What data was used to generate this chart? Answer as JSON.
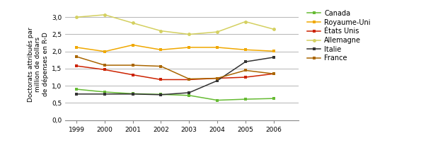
{
  "years": [
    1999,
    2000,
    2001,
    2002,
    2003,
    2004,
    2005,
    2006
  ],
  "series": {
    "Canada": [
      0.9,
      0.82,
      0.77,
      0.75,
      0.72,
      0.58,
      0.61,
      0.63
    ],
    "Royaume-Uni": [
      2.12,
      2.0,
      2.19,
      2.05,
      2.12,
      2.12,
      2.05,
      2.01
    ],
    "États Unis": [
      1.58,
      1.47,
      1.32,
      1.18,
      1.18,
      1.22,
      1.25,
      1.35
    ],
    "Allemagne": [
      3.0,
      3.07,
      2.83,
      2.6,
      2.5,
      2.57,
      2.87,
      2.65
    ],
    "Italie": [
      0.76,
      0.76,
      0.76,
      0.74,
      0.8,
      1.15,
      1.7,
      1.83
    ],
    "France": [
      1.85,
      1.6,
      1.6,
      1.57,
      1.2,
      1.22,
      1.45,
      1.35
    ]
  },
  "colors": {
    "Canada": "#66bb33",
    "Royaume-Uni": "#f0a800",
    "États Unis": "#cc2200",
    "Allemagne": "#d4d060",
    "Italie": "#333333",
    "France": "#aa6600"
  },
  "markers": {
    "Canada": "s",
    "Royaume-Uni": "s",
    "États Unis": "s",
    "Allemagne": "o",
    "Italie": "s",
    "France": "s"
  },
  "legend_order": [
    "Canada",
    "Royaume-Uni",
    "États Unis",
    "Allemagne",
    "Italie",
    "France"
  ],
  "ylabel": "Doctorats attribués par\nmillion de dollars\nde dépenses en R-D",
  "ylim": [
    0.0,
    3.25
  ],
  "yticks": [
    0.0,
    0.5,
    1.0,
    1.5,
    2.0,
    2.5,
    3.0
  ],
  "ytick_labels": [
    "0,0",
    "0,5",
    "1,0",
    "1,5",
    "2,0",
    "2,5",
    "3,0"
  ],
  "xticks": [
    1999,
    2000,
    2001,
    2002,
    2003,
    2004,
    2005,
    2006
  ]
}
